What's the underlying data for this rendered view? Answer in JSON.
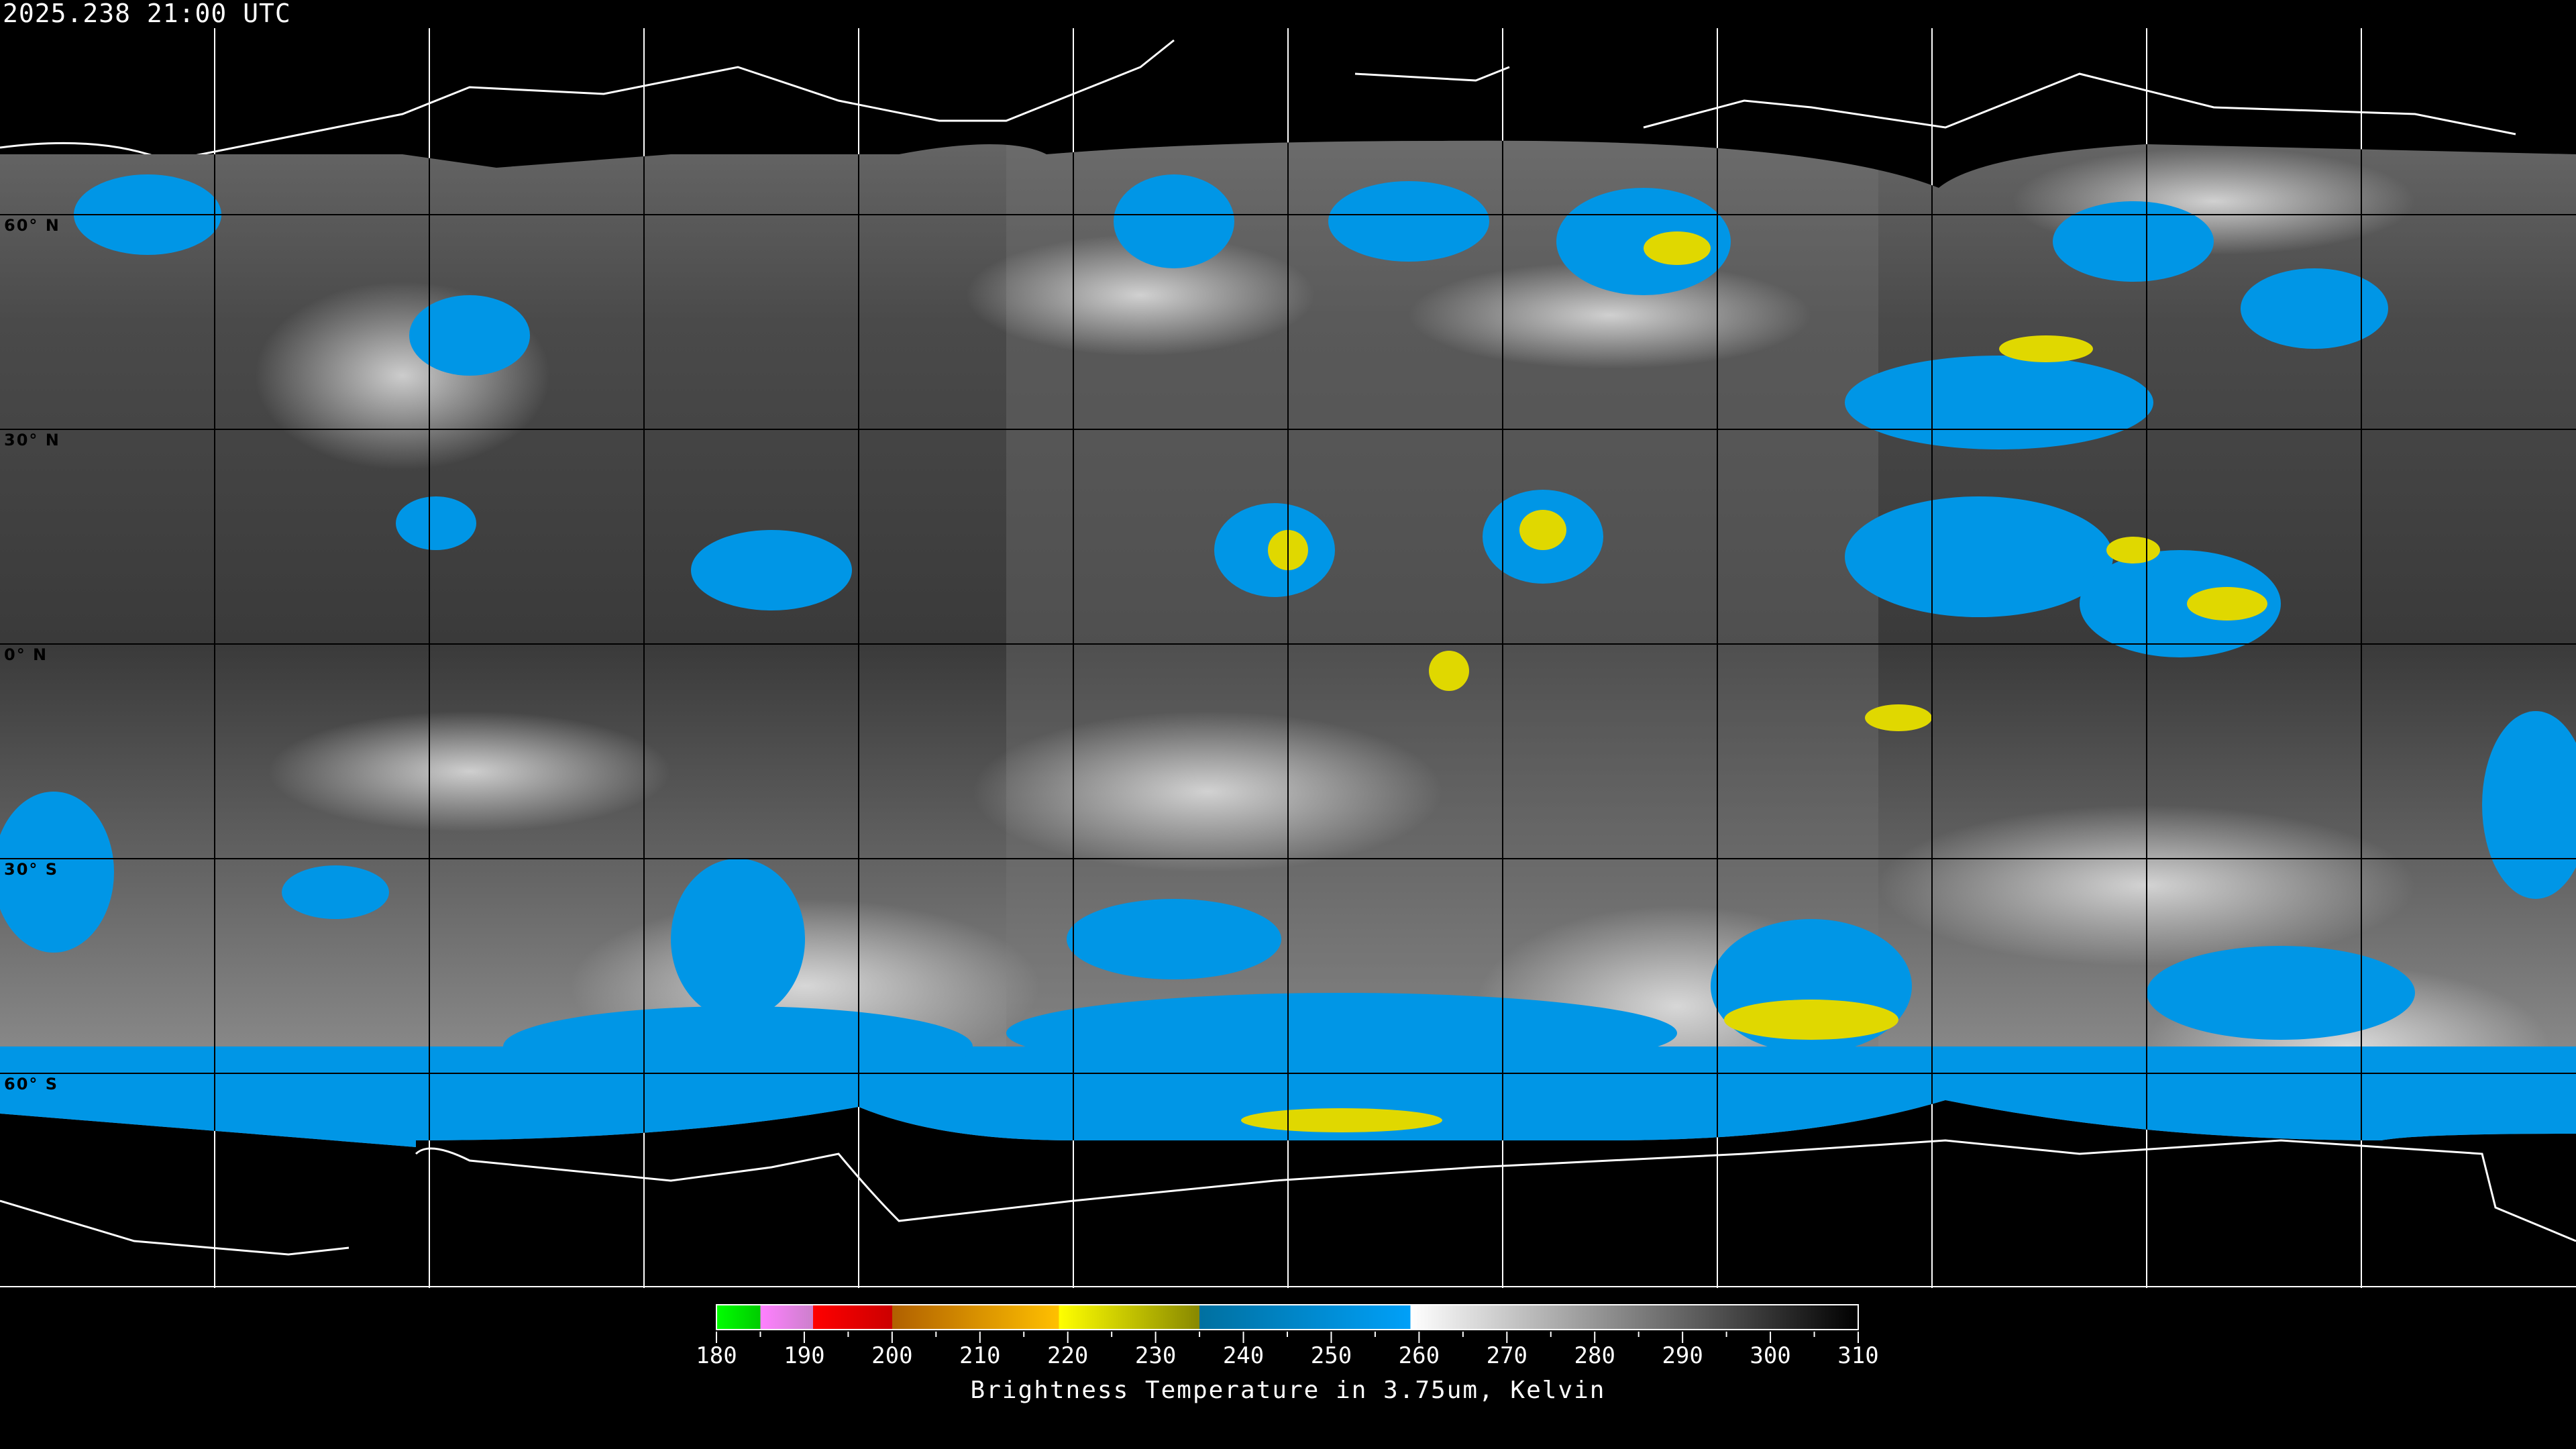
{
  "header": {
    "timestamp": "2025.238 21:00 UTC"
  },
  "map": {
    "projection": "equirectangular",
    "lon_range": [
      -180,
      180
    ],
    "lat_range": [
      90,
      -90
    ],
    "grid_spacing_deg": 30,
    "lat_labels": [
      "60° N",
      "30° N",
      "0° N",
      "30° S",
      "60° S"
    ],
    "colors": {
      "background": "#000000",
      "cold_cloud": "#0096e6",
      "very_cold_cloud": "#e8e000",
      "coastline_over_space": "#ffffff",
      "coastline_over_image": "#000000"
    }
  },
  "colorbar": {
    "title": "Brightness Temperature in 3.75um, Kelvin",
    "min": 180,
    "max": 310,
    "tick_labels": [
      "180",
      "190",
      "200",
      "210",
      "220",
      "230",
      "240",
      "250",
      "260",
      "270",
      "280",
      "290",
      "300",
      "310"
    ],
    "stops": [
      {
        "t": 180,
        "color": "#00ff00"
      },
      {
        "t": 185,
        "color": "#00cc00"
      },
      {
        "t": 185,
        "color": "#ff80ff"
      },
      {
        "t": 191,
        "color": "#cc80cc"
      },
      {
        "t": 191,
        "color": "#ff0000"
      },
      {
        "t": 200,
        "color": "#cc0000"
      },
      {
        "t": 200,
        "color": "#b06000"
      },
      {
        "t": 219,
        "color": "#ffc000"
      },
      {
        "t": 219,
        "color": "#ffff00"
      },
      {
        "t": 235,
        "color": "#888800"
      },
      {
        "t": 235,
        "color": "#0070a0"
      },
      {
        "t": 259,
        "color": "#00a0f8"
      },
      {
        "t": 259,
        "color": "#ffffff"
      },
      {
        "t": 310,
        "color": "#000000"
      }
    ]
  }
}
